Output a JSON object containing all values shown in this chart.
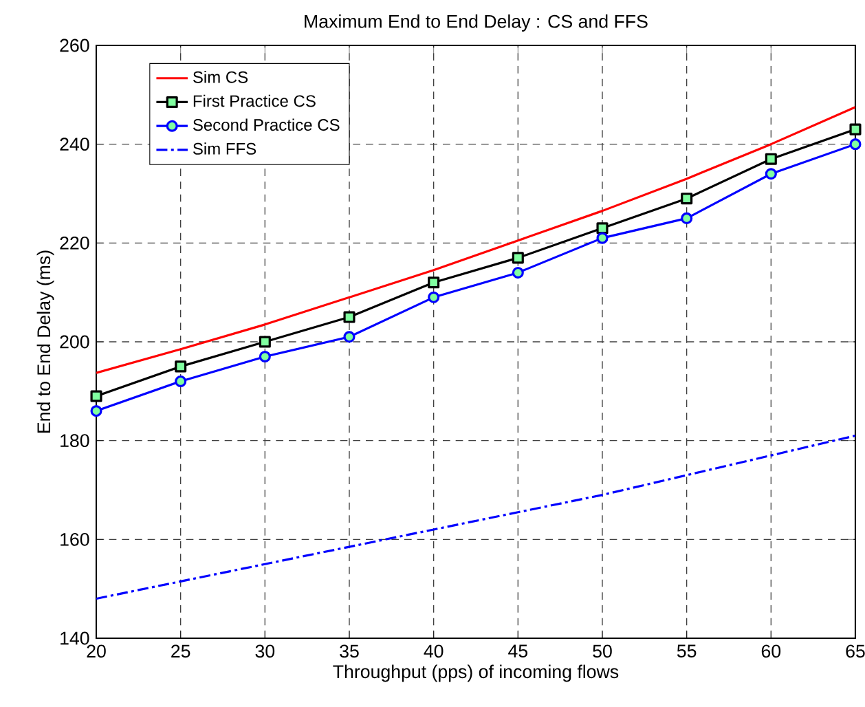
{
  "chart_data": {
    "type": "line",
    "title": "Maximum  End to End Delay : CS and FFS",
    "xlabel": "Throughput (pps) of incoming flows",
    "ylabel": "End to End Delay (ms)",
    "x": [
      20,
      25,
      30,
      35,
      40,
      45,
      50,
      55,
      60,
      65
    ],
    "series": [
      {
        "name": "Sim CS",
        "color": "#ff0000",
        "marker": "none",
        "line_style": "solid",
        "values": [
          193.7,
          198.5,
          203.5,
          209,
          214.5,
          220.5,
          226.5,
          233,
          240,
          247.5
        ]
      },
      {
        "name": "First Practice  CS",
        "color": "#000000",
        "marker": "square",
        "line_style": "solid",
        "values": [
          189,
          195,
          200,
          205,
          212,
          217,
          223,
          229,
          237,
          243
        ]
      },
      {
        "name": "Second Practice CS",
        "color": "#0000ff",
        "marker": "circle",
        "line_style": "solid",
        "values": [
          186,
          192,
          197,
          201,
          209,
          214,
          221,
          225,
          234,
          240
        ]
      },
      {
        "name": "Sim FFS",
        "color": "#0000ff",
        "marker": "none",
        "line_style": "dashdot",
        "values": [
          148,
          151.5,
          155,
          158.5,
          162,
          165.5,
          169,
          173,
          177,
          181
        ]
      }
    ],
    "xlim": [
      20,
      65
    ],
    "ylim": [
      140,
      260
    ],
    "xticks": [
      20,
      25,
      30,
      35,
      40,
      45,
      50,
      55,
      60,
      65
    ],
    "yticks": [
      140,
      160,
      180,
      200,
      220,
      240,
      260
    ],
    "grid": true,
    "legend": "top left"
  }
}
